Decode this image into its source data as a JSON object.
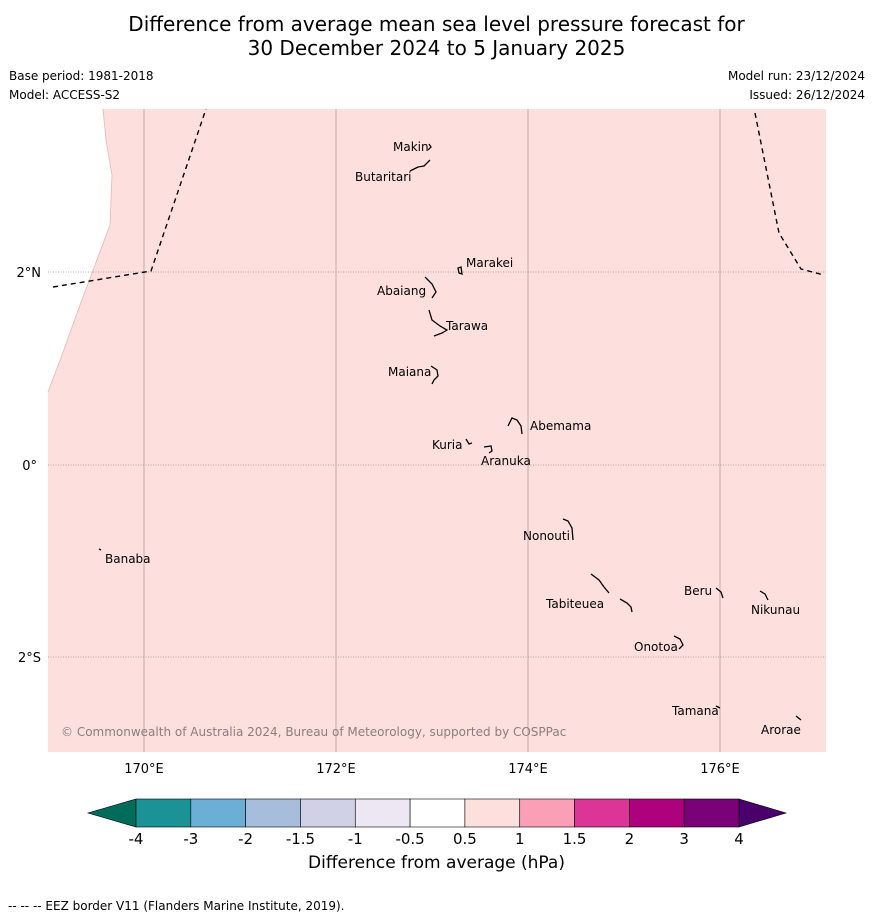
{
  "title": {
    "line1": "Difference from average mean sea level pressure forecast for",
    "line2": "30 December 2024 to 5 January 2025"
  },
  "meta": {
    "base_period": "Base period: 1981-2018",
    "model": "Model: ACCESS-S2",
    "model_run": "Model run: 23/12/2024",
    "issued": "Issued: 26/12/2024"
  },
  "map": {
    "fill_color": "#fde0dd",
    "longitude_labels": [
      "170°E",
      "172°E",
      "174°E",
      "176°E"
    ],
    "latitude_labels": [
      "2°N",
      "0°",
      "2°S"
    ],
    "places": [
      {
        "name": "Makin"
      },
      {
        "name": "Butaritari"
      },
      {
        "name": "Marakei"
      },
      {
        "name": "Abaiang"
      },
      {
        "name": "Tarawa"
      },
      {
        "name": "Maiana"
      },
      {
        "name": "Abemama"
      },
      {
        "name": "Kuria"
      },
      {
        "name": "Aranuka"
      },
      {
        "name": "Banaba"
      },
      {
        "name": "Nonouti"
      },
      {
        "name": "Beru"
      },
      {
        "name": "Tabiteuea"
      },
      {
        "name": "Nikunau"
      },
      {
        "name": "Onotoa"
      },
      {
        "name": "Tamana"
      },
      {
        "name": "Arorae"
      }
    ],
    "copyright": "© Commonwealth of Australia 2024, Bureau of Meteorology, supported by COSPPac"
  },
  "colorbar": {
    "label": "Difference from average (hPa)",
    "ticks": [
      "-4",
      "-3",
      "-2",
      "-1.5",
      "-1",
      "-0.5",
      "0.5",
      "1",
      "1.5",
      "2",
      "3",
      "4"
    ],
    "colors": [
      "#1b9296",
      "#6baed6",
      "#a6bddb",
      "#d0d1e6",
      "#ece7f2",
      "#ffffff",
      "#fde0dd",
      "#fa9fb5",
      "#dd3497",
      "#ae017e",
      "#7a0177"
    ],
    "under_color": "#016c59",
    "over_color": "#49006a"
  },
  "footnote": "--  --  -- EEZ border V11 (Flanders Marine Institute, 2019)."
}
